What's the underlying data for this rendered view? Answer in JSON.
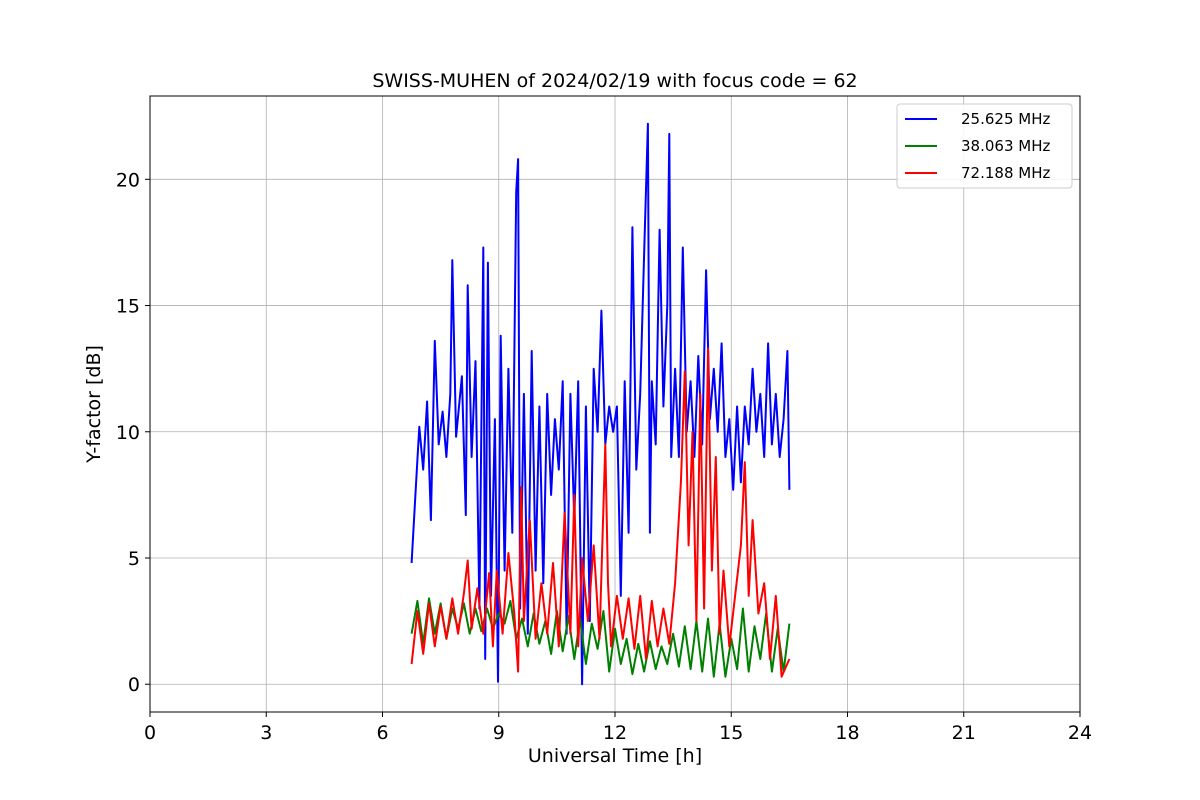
{
  "chart_data": {
    "type": "line",
    "title": "SWISS-MUHEN of 2024/02/19 with focus code = 62",
    "xlabel": "Universal Time [h]",
    "ylabel": "Y-factor [dB]",
    "xlim": [
      0,
      24
    ],
    "ylim": [
      -1.1,
      23.3
    ],
    "xticks": [
      0,
      3,
      6,
      9,
      12,
      15,
      18,
      21,
      24
    ],
    "xtick_labels": [
      "0",
      "3",
      "6",
      "9",
      "12",
      "15",
      "18",
      "21",
      "24"
    ],
    "yticks": [
      0,
      5,
      10,
      15,
      20
    ],
    "ytick_labels": [
      "0",
      "5",
      "10",
      "15",
      "20"
    ],
    "grid": true,
    "legend_position": "top-right",
    "series": [
      {
        "name": "25.625 MHz",
        "color": "#0000ff",
        "x": [
          6.75,
          6.85,
          6.95,
          7.05,
          7.15,
          7.25,
          7.35,
          7.45,
          7.55,
          7.65,
          7.75,
          7.8,
          7.9,
          8.05,
          8.15,
          8.2,
          8.3,
          8.4,
          8.5,
          8.6,
          8.65,
          8.72,
          8.8,
          8.9,
          8.98,
          9.05,
          9.15,
          9.25,
          9.35,
          9.45,
          9.5,
          9.55,
          9.65,
          9.75,
          9.85,
          9.95,
          10.05,
          10.15,
          10.25,
          10.35,
          10.45,
          10.55,
          10.65,
          10.75,
          10.85,
          10.95,
          11.05,
          11.15,
          11.25,
          11.35,
          11.45,
          11.55,
          11.65,
          11.75,
          11.85,
          11.95,
          12.05,
          12.15,
          12.25,
          12.35,
          12.45,
          12.55,
          12.65,
          12.75,
          12.85,
          12.9,
          12.95,
          13.05,
          13.15,
          13.25,
          13.35,
          13.4,
          13.45,
          13.55,
          13.65,
          13.75,
          13.85,
          13.95,
          14.05,
          14.15,
          14.25,
          14.35,
          14.45,
          14.55,
          14.65,
          14.75,
          14.85,
          14.95,
          15.05,
          15.15,
          15.25,
          15.35,
          15.45,
          15.55,
          15.65,
          15.75,
          15.85,
          15.95,
          16.05,
          16.15,
          16.25,
          16.35,
          16.45,
          16.5
        ],
        "values": [
          4.8,
          7.5,
          10.2,
          8.5,
          11.2,
          6.5,
          13.6,
          9.5,
          10.8,
          9.0,
          11.5,
          16.8,
          9.8,
          12.2,
          6.7,
          15.8,
          9.0,
          12.8,
          3.0,
          17.3,
          1.0,
          16.7,
          3.5,
          10.5,
          0.1,
          13.8,
          4.5,
          12.5,
          6.0,
          19.5,
          20.8,
          3.0,
          11.5,
          2.0,
          13.2,
          4.5,
          11.0,
          4.0,
          11.5,
          7.5,
          10.5,
          8.5,
          12.0,
          2.0,
          11.5,
          6.5,
          12.0,
          0.0,
          11.0,
          2.5,
          12.5,
          10.0,
          14.8,
          9.5,
          11.0,
          10.0,
          11.0,
          3.5,
          12.0,
          6.0,
          18.1,
          8.5,
          11.5,
          17.0,
          22.2,
          6.0,
          12.0,
          9.5,
          18.0,
          11.0,
          15.0,
          21.8,
          9.0,
          12.5,
          9.0,
          17.3,
          10.0,
          12.0,
          9.0,
          13.0,
          9.5,
          16.4,
          10.5,
          12.5,
          10.0,
          13.5,
          9.0,
          10.5,
          7.7,
          11.0,
          8.0,
          11.0,
          9.5,
          12.5,
          10.0,
          11.5,
          9.0,
          13.5,
          9.5,
          11.5,
          9.0,
          10.5,
          13.2,
          7.7
        ]
      },
      {
        "name": "38.063 MHz",
        "color": "#008000",
        "x": [
          6.75,
          6.9,
          7.05,
          7.2,
          7.35,
          7.5,
          7.65,
          7.8,
          7.95,
          8.1,
          8.25,
          8.4,
          8.55,
          8.7,
          8.85,
          9.0,
          9.15,
          9.3,
          9.45,
          9.6,
          9.75,
          9.9,
          10.05,
          10.2,
          10.35,
          10.5,
          10.65,
          10.8,
          10.95,
          11.1,
          11.25,
          11.4,
          11.55,
          11.7,
          11.85,
          12.0,
          12.15,
          12.3,
          12.45,
          12.6,
          12.75,
          12.9,
          13.05,
          13.2,
          13.35,
          13.5,
          13.65,
          13.8,
          13.95,
          14.1,
          14.25,
          14.4,
          14.55,
          14.7,
          14.85,
          15.0,
          15.15,
          15.3,
          15.45,
          15.6,
          15.75,
          15.9,
          16.05,
          16.2,
          16.35,
          16.5
        ],
        "values": [
          2.0,
          3.3,
          1.6,
          3.4,
          2.0,
          3.2,
          1.8,
          3.0,
          2.2,
          3.2,
          2.0,
          3.0,
          2.1,
          3.0,
          2.2,
          2.8,
          2.4,
          3.3,
          1.8,
          2.6,
          1.5,
          2.8,
          1.6,
          2.5,
          1.2,
          2.9,
          1.3,
          2.7,
          1.0,
          2.6,
          0.8,
          2.4,
          1.4,
          2.9,
          0.5,
          2.2,
          0.8,
          1.8,
          0.4,
          1.6,
          0.5,
          1.7,
          0.6,
          1.5,
          0.8,
          2.0,
          0.7,
          2.3,
          0.6,
          2.5,
          0.5,
          2.6,
          0.3,
          2.4,
          0.3,
          1.8,
          0.6,
          3.0,
          0.5,
          2.3,
          1.0,
          2.8,
          0.5,
          2.2,
          0.5,
          2.4
        ]
      },
      {
        "name": "72.188 MHz",
        "color": "#ff0000",
        "x": [
          6.75,
          6.9,
          7.05,
          7.2,
          7.35,
          7.5,
          7.65,
          7.8,
          7.95,
          8.1,
          8.2,
          8.3,
          8.45,
          8.6,
          8.75,
          8.85,
          8.95,
          9.1,
          9.25,
          9.4,
          9.5,
          9.58,
          9.65,
          9.8,
          9.95,
          10.1,
          10.25,
          10.4,
          10.55,
          10.7,
          10.85,
          10.95,
          11.05,
          11.15,
          11.3,
          11.45,
          11.6,
          11.75,
          11.82,
          11.9,
          12.05,
          12.2,
          12.35,
          12.5,
          12.65,
          12.8,
          12.95,
          13.1,
          13.25,
          13.4,
          13.55,
          13.7,
          13.8,
          13.9,
          14.0,
          14.1,
          14.2,
          14.3,
          14.4,
          14.5,
          14.6,
          14.7,
          14.8,
          14.95,
          15.1,
          15.25,
          15.35,
          15.45,
          15.55,
          15.7,
          15.85,
          16.0,
          16.15,
          16.3,
          16.5
        ],
        "values": [
          0.8,
          2.9,
          1.2,
          3.2,
          1.5,
          3.1,
          1.8,
          3.4,
          2.0,
          3.6,
          4.9,
          2.2,
          3.8,
          2.0,
          4.4,
          1.5,
          4.5,
          2.0,
          5.2,
          2.8,
          0.5,
          7.8,
          2.5,
          6.5,
          1.8,
          4.0,
          2.0,
          4.8,
          1.5,
          6.8,
          2.0,
          7.5,
          1.5,
          5.0,
          2.5,
          5.5,
          1.8,
          9.5,
          4.0,
          1.5,
          3.5,
          1.8,
          3.4,
          1.4,
          3.5,
          1.0,
          3.3,
          1.5,
          3.0,
          1.6,
          4.0,
          8.0,
          12.4,
          5.5,
          10.0,
          2.5,
          11.5,
          3.0,
          13.3,
          4.5,
          9.0,
          2.0,
          4.5,
          1.5,
          3.5,
          5.5,
          8.8,
          3.5,
          6.5,
          2.8,
          4.0,
          1.0,
          3.5,
          0.3,
          1.0
        ]
      }
    ]
  }
}
